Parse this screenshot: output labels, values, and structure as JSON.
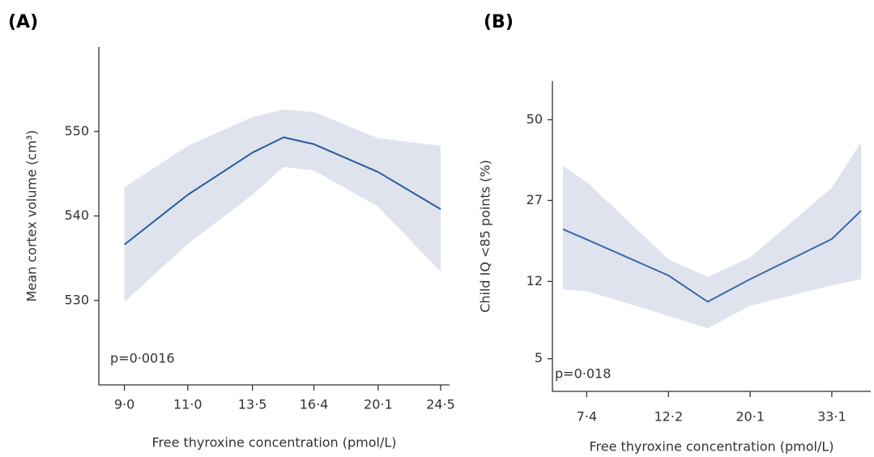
{
  "chart_data": [
    {
      "type": "line",
      "panel_label": "(A)",
      "ylabel": "Mean cortex volume (cm³)",
      "xlabel": "Free thyroxine concentration (pmol/L)",
      "annotation": "p=0·0016",
      "xscale": "log",
      "xlim": [
        8.3,
        25.2
      ],
      "ylim": [
        520,
        560
      ],
      "xticks": [
        {
          "value": 9,
          "label": "9·0"
        },
        {
          "value": 11,
          "label": "11·0"
        },
        {
          "value": 13.5,
          "label": "13·5"
        },
        {
          "value": 16.4,
          "label": "16·4"
        },
        {
          "value": 20.1,
          "label": "20·1"
        },
        {
          "value": 24.5,
          "label": "24·5"
        }
      ],
      "yticks": [
        530,
        540,
        550
      ],
      "x": [
        9.0,
        11.0,
        13.5,
        14.9,
        16.4,
        20.1,
        24.5
      ],
      "series": [
        {
          "color": "#2a5b9a",
          "band_color": "#dfe3ee",
          "values": [
            536.6,
            542.5,
            547.5,
            549.3,
            548.5,
            545.2,
            540.8
          ],
          "upper": [
            543.4,
            548.3,
            551.7,
            552.6,
            552.3,
            549.2,
            548.3
          ],
          "lower": [
            529.8,
            536.7,
            542.5,
            545.8,
            545.4,
            541.1,
            533.4
          ]
        }
      ]
    },
    {
      "type": "line",
      "panel_label": "(B)",
      "ylabel": "Child IQ <85 points (%)",
      "xlabel": "Free thyroxine concentration (pmol/L)",
      "annotation": "p=0·018",
      "xscale": "log",
      "yscale": "logit",
      "xlim": [
        6.0,
        42.0
      ],
      "ylim": [
        3.4,
        61.7
      ],
      "xticks": [
        {
          "value": 7.4,
          "label": "7·4"
        },
        {
          "value": 12.2,
          "label": "12·2"
        },
        {
          "value": 20.1,
          "label": "20·1"
        },
        {
          "value": 33.1,
          "label": "33·1"
        }
      ],
      "yticks": [
        5,
        12,
        27,
        50
      ],
      "x": [
        6.4,
        7.4,
        12.2,
        15.5,
        20.1,
        33.1,
        39.6
      ],
      "series": [
        {
          "color": "#3a6aa8",
          "band_color": "#dfe3ee",
          "values": [
            20.6,
            18.6,
            12.8,
            9.6,
            12.3,
            18.7,
            24.6
          ],
          "upper": [
            36.1,
            31.7,
            15.2,
            12.6,
            15.5,
            30.2,
            43.1
          ],
          "lower": [
            11.0,
            10.8,
            8.2,
            7.1,
            9.2,
            11.5,
            12.3
          ]
        }
      ]
    }
  ]
}
